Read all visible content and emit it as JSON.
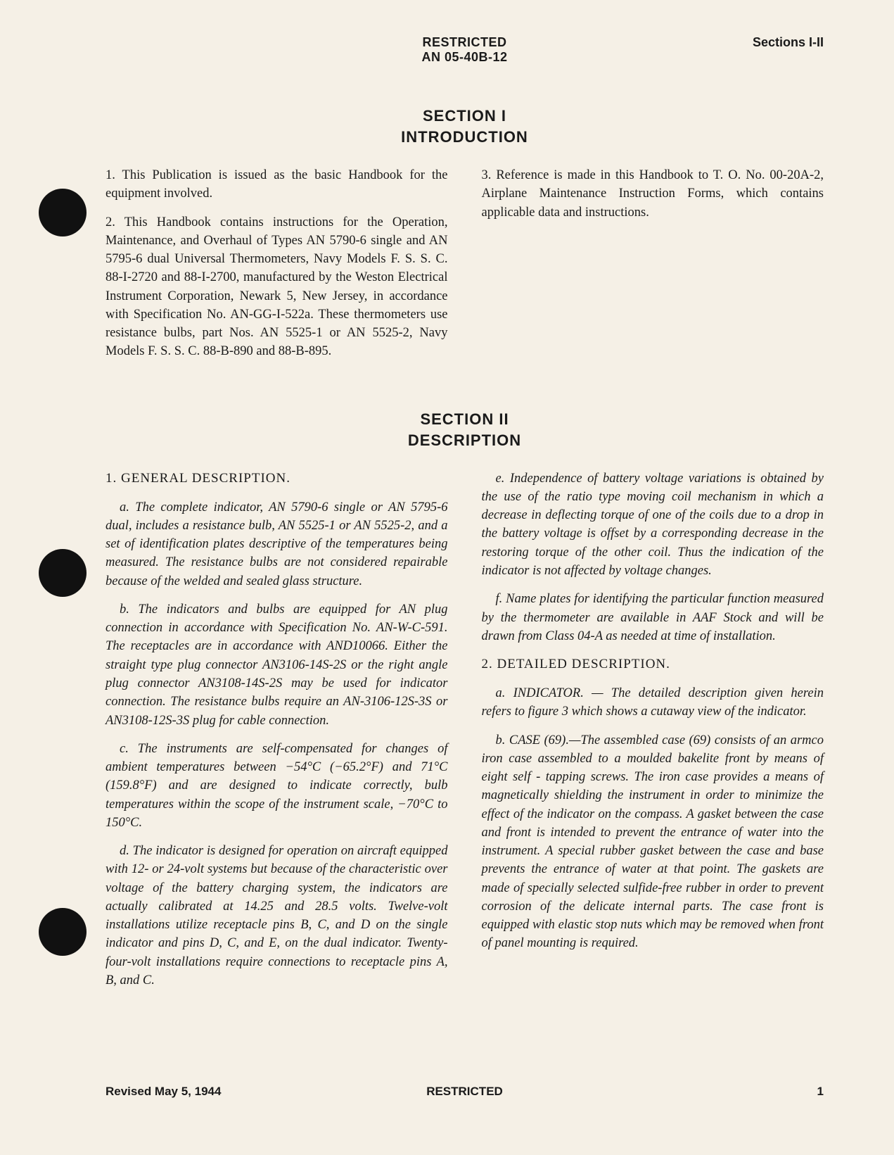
{
  "header": {
    "classification": "RESTRICTED",
    "doc_number": "AN 05-40B-12",
    "sections_label": "Sections I-II"
  },
  "section1": {
    "number": "SECTION I",
    "title": "INTRODUCTION",
    "paras": {
      "p1": "1. This Publication is issued as the basic Handbook for the equipment involved.",
      "p2": "2. This Handbook contains instructions for the Operation, Maintenance, and Overhaul of Types AN 5790-6 single and AN 5795-6 dual Universal Thermometers, Navy Models F. S. S. C. 88-I-2720 and 88-I-2700, manufactured by the Weston Electrical Instrument Corporation, Newark 5, New Jersey, in accordance with Specification No. AN-GG-I-522a. These thermometers use resistance bulbs, part Nos. AN 5525-1 or AN 5525-2, Navy Models F. S. S. C. 88-B-890 and 88-B-895.",
      "p3": "3. Reference is made in this Handbook to T. O. No. 00-20A-2, Airplane Maintenance Instruction Forms, which contains applicable data and instructions."
    }
  },
  "section2": {
    "number": "SECTION II",
    "title": "DESCRIPTION",
    "h1": "1. GENERAL DESCRIPTION.",
    "paras": {
      "a": "a. The complete indicator, AN 5790-6 single or AN 5795-6 dual, includes a resistance bulb, AN 5525-1 or AN 5525-2, and a set of identification plates descriptive of the temperatures being measured. The resistance bulbs are not considered repairable because of the welded and sealed glass structure.",
      "b": "b. The indicators and bulbs are equipped for AN plug connection in accordance with Specification No. AN-W-C-591. The receptacles are in accordance with AND10066. Either the straight type plug connector AN3106-14S-2S or the right angle plug connector AN3108-14S-2S may be used for indicator connection. The resistance bulbs require an AN-3106-12S-3S or AN3108-12S-3S plug for cable connection.",
      "c": "c. The instruments are self-compensated for changes of ambient temperatures between −54°C (−65.2°F) and 71°C (159.8°F) and are designed to indicate correctly, bulb temperatures within the scope of the instrument scale, −70°C to 150°C.",
      "d": "d. The indicator is designed for operation on aircraft equipped with 12- or 24-volt systems but because of the characteristic over voltage of the battery charging system, the indicators are actually calibrated at 14.25 and 28.5 volts. Twelve-volt installations utilize receptacle pins B, C, and D on the single indicator and pins D, C, and E, on the dual indicator. Twenty-four-volt installations require connections to receptacle pins A, B, and C.",
      "e": "e. Independence of battery voltage variations is obtained by the use of the ratio type moving coil mechanism in which a decrease in deflecting torque of one of the coils due to a drop in the battery voltage is offset by a corresponding decrease in the restoring torque of the other coil. Thus the indication of the indicator is not affected by voltage changes.",
      "f": "f. Name plates for identifying the particular function measured by the thermometer are available in AAF Stock and will be drawn from Class 04-A as needed at time of installation."
    },
    "h2": "2. DETAILED DESCRIPTION.",
    "paras2": {
      "a": "a. INDICATOR. — The detailed description given herein refers to figure 3 which shows a cutaway view of the indicator.",
      "b": "b. CASE (69).—The assembled case (69) consists of an armco iron case assembled to a moulded bakelite front by means of eight self - tapping screws. The iron case provides a means of magnetically shielding the instrument in order to minimize the effect of the indicator on the compass. A gasket between the case and front is intended to prevent the entrance of water into the instrument. A special rubber gasket between the case and base prevents the entrance of water at that point. The gaskets are made of specially selected sulfide-free rubber in order to prevent corrosion of the delicate internal parts. The case front is equipped with elastic stop nuts which may be removed when front of panel mounting is required."
    }
  },
  "footer": {
    "revised": "Revised May 5, 1944",
    "classification": "RESTRICTED",
    "page_number": "1"
  },
  "colors": {
    "paper": "#f5f0e6",
    "ink": "#1a1a1a",
    "hole": "#111111"
  }
}
